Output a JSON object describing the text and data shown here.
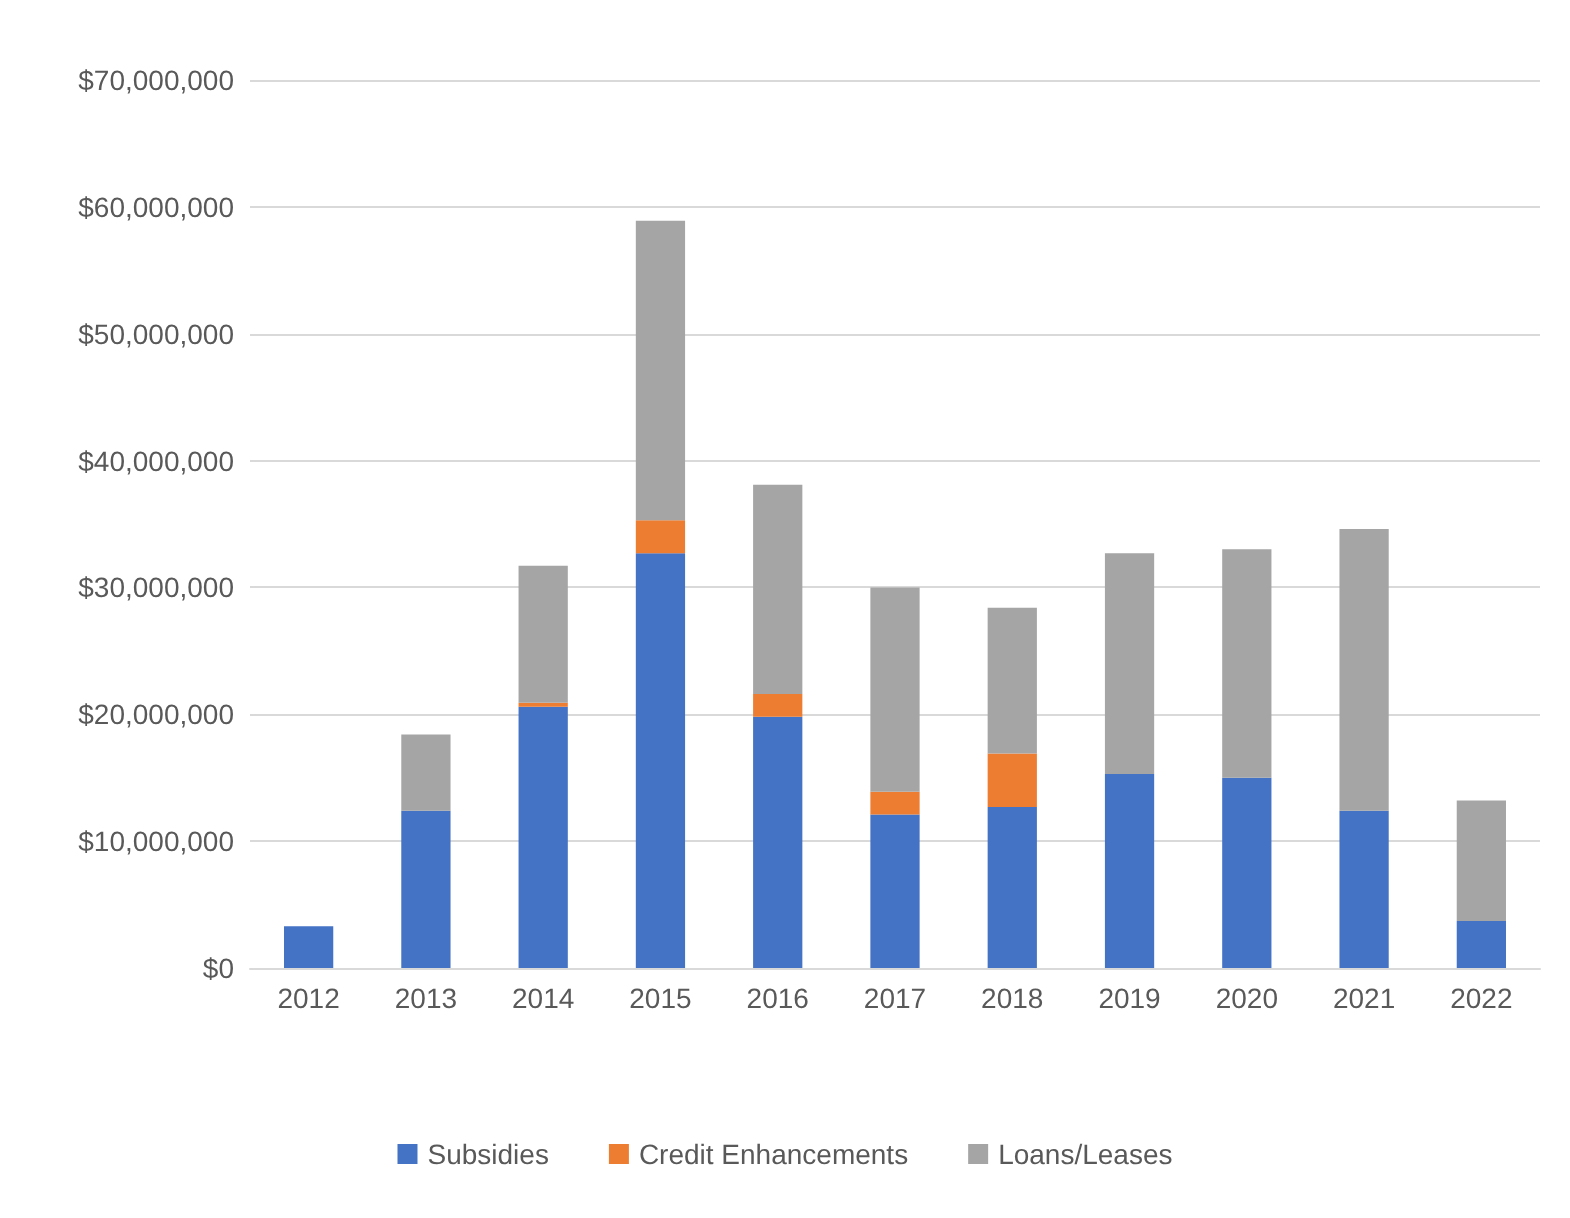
{
  "chart_data": {
    "type": "bar",
    "stacked": true,
    "categories": [
      "2012",
      "2013",
      "2014",
      "2015",
      "2016",
      "2017",
      "2018",
      "2019",
      "2020",
      "2021",
      "2022"
    ],
    "series": [
      {
        "name": "Subsidies",
        "color": "#4472c4",
        "values": [
          3300000,
          12400000,
          20600000,
          32700000,
          19800000,
          12100000,
          12700000,
          15300000,
          15000000,
          12400000,
          3700000
        ]
      },
      {
        "name": "Credit Enhancements",
        "color": "#ed7d31",
        "values": [
          0,
          0,
          300000,
          2600000,
          1800000,
          1800000,
          4200000,
          0,
          0,
          0,
          0
        ]
      },
      {
        "name": "Loans/Leases",
        "color": "#a5a5a5",
        "values": [
          0,
          6000000,
          10800000,
          23600000,
          16500000,
          16100000,
          11500000,
          17400000,
          18000000,
          22200000,
          9500000
        ]
      }
    ],
    "ylim": [
      0,
      70000000
    ],
    "yticks": [
      {
        "value": 0,
        "label": "$0"
      },
      {
        "value": 10000000,
        "label": "$10,000,000"
      },
      {
        "value": 20000000,
        "label": "$20,000,000"
      },
      {
        "value": 30000000,
        "label": "$30,000,000"
      },
      {
        "value": 40000000,
        "label": "$40,000,000"
      },
      {
        "value": 50000000,
        "label": "$50,000,000"
      },
      {
        "value": 60000000,
        "label": "$60,000,000"
      },
      {
        "value": 70000000,
        "label": "$70,000,000"
      }
    ],
    "grid": "y",
    "legend": "bottom"
  }
}
